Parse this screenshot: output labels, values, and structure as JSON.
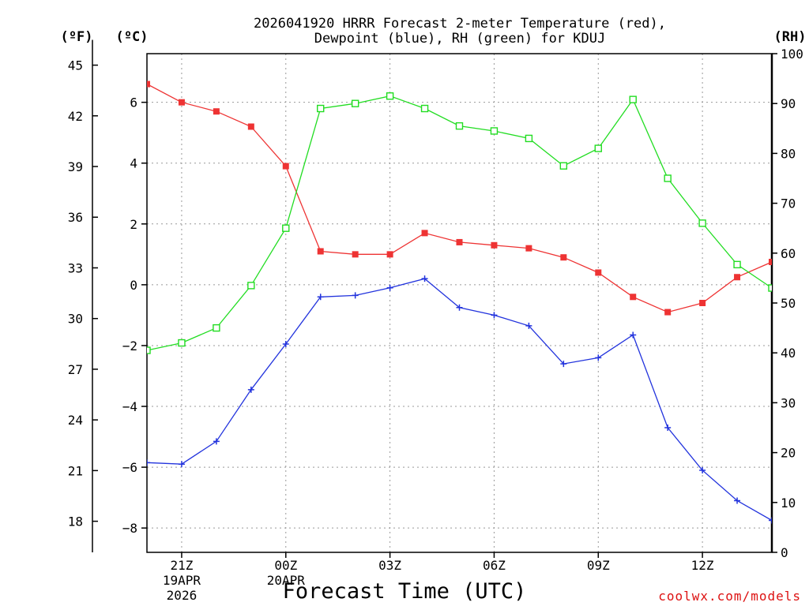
{
  "chart_data": {
    "type": "line",
    "title_line1": "2026041920 HRRR Forecast 2-meter Temperature (red),",
    "title_line2": "Dewpoint (blue), RH (green) for KDUJ",
    "xlabel": "Forecast Time (UTC)",
    "credit": "coolwx.com/models",
    "units": {
      "fahrenheit": "(ºF)",
      "celsius": "(ºC)",
      "rh": "(RH)"
    },
    "x_hours": [
      20,
      21,
      22,
      23,
      24,
      25,
      26,
      27,
      28,
      29,
      30,
      31,
      32,
      33,
      34,
      35,
      36,
      37,
      38
    ],
    "x_range": [
      20,
      38
    ],
    "x_ticks": [
      {
        "hour": 21,
        "label": "21Z",
        "date": "19APR",
        "year": "2026"
      },
      {
        "hour": 24,
        "label": "00Z",
        "date": "20APR",
        "year": ""
      },
      {
        "hour": 27,
        "label": "03Z",
        "date": "",
        "year": ""
      },
      {
        "hour": 30,
        "label": "06Z",
        "date": "",
        "year": ""
      },
      {
        "hour": 33,
        "label": "09Z",
        "date": "",
        "year": ""
      },
      {
        "hour": 36,
        "label": "12Z",
        "date": "",
        "year": ""
      }
    ],
    "celsius_range": [
      -8.8,
      7.6
    ],
    "celsius_ticks": [
      {
        "value": -8,
        "label": "−8"
      },
      {
        "value": -6,
        "label": "−6"
      },
      {
        "value": -4,
        "label": "−4"
      },
      {
        "value": -2,
        "label": "−2"
      },
      {
        "value": 0,
        "label": "0"
      },
      {
        "value": 2,
        "label": "2"
      },
      {
        "value": 4,
        "label": "4"
      },
      {
        "value": 6,
        "label": "6"
      }
    ],
    "fahrenheit_ticks": [
      "18",
      "21",
      "24",
      "27",
      "30",
      "33",
      "36",
      "39",
      "42",
      "45"
    ],
    "rh_range": [
      0,
      100
    ],
    "rh_ticks": [
      "0",
      "10",
      "20",
      "30",
      "40",
      "50",
      "60",
      "70",
      "80",
      "90",
      "100"
    ],
    "series": [
      {
        "name": "Temperature",
        "unit": "C",
        "color": "#ee3333",
        "marker": "filled-square",
        "values": [
          6.6,
          6.0,
          5.7,
          5.2,
          3.9,
          1.1,
          1.0,
          1.0,
          1.7,
          1.4,
          1.3,
          1.2,
          0.9,
          0.4,
          -0.4,
          -0.9,
          -0.6,
          0.25,
          0.75
        ]
      },
      {
        "name": "Dewpoint",
        "unit": "C",
        "color": "#2233dd",
        "marker": "plus",
        "values": [
          -5.85,
          -5.9,
          -5.15,
          -3.45,
          -1.95,
          -0.4,
          -0.35,
          -0.1,
          0.2,
          -0.75,
          -1.0,
          -1.35,
          -2.6,
          -2.4,
          -1.65,
          -4.7,
          -6.1,
          -7.1,
          -7.75
        ]
      },
      {
        "name": "RH",
        "unit": "%",
        "color": "#22dd22",
        "marker": "open-square",
        "values": [
          40.5,
          42,
          45,
          53.5,
          65,
          89,
          90,
          91.5,
          89,
          85.5,
          84.5,
          83,
          77.5,
          81,
          90.8,
          75,
          66,
          57.7,
          53
        ]
      }
    ]
  }
}
